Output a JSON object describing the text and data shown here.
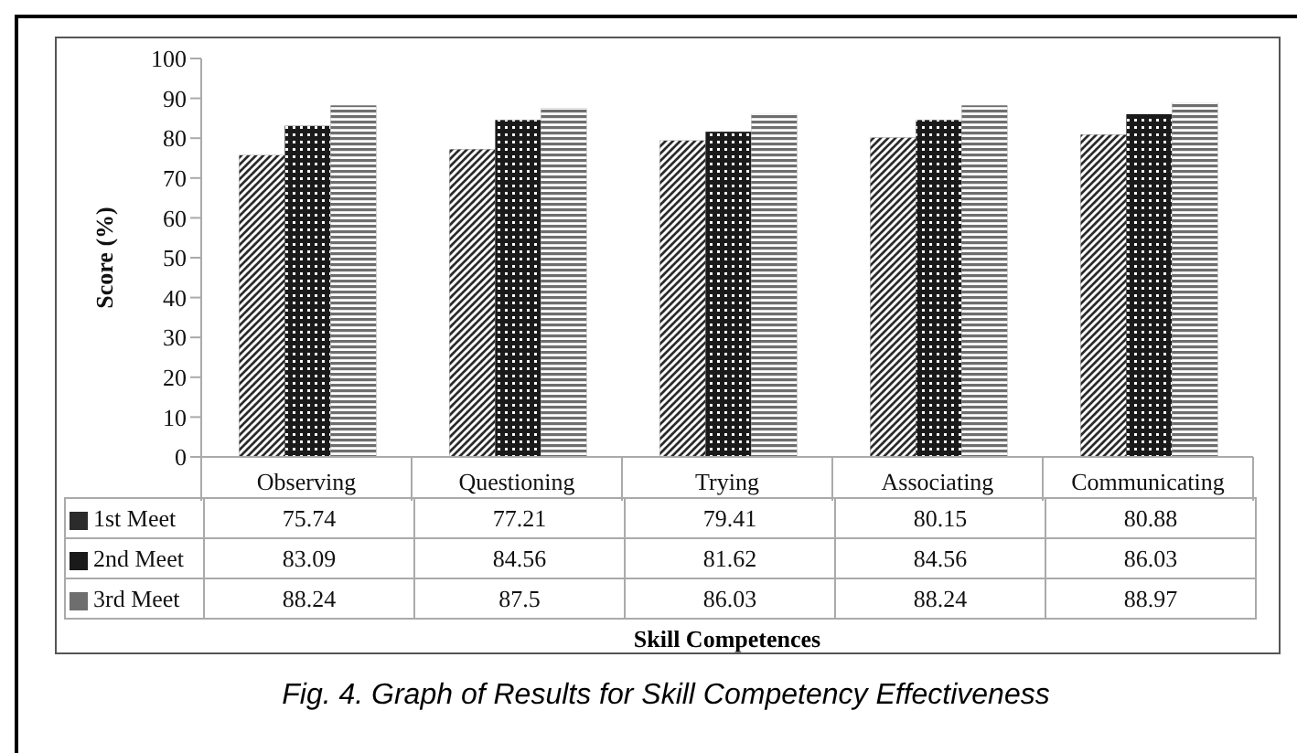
{
  "chart_data": {
    "type": "bar",
    "ylabel": "Score (%)",
    "categories": [
      "Observing",
      "Questioning",
      "Trying",
      "Associating",
      "Communicating"
    ],
    "series": [
      {
        "name": "1st Meet",
        "color": "#2b2b2b",
        "values": [
          75.74,
          77.21,
          79.41,
          80.15,
          80.88
        ]
      },
      {
        "name": "2nd Meet",
        "color": "#1a1a1a",
        "values": [
          83.09,
          84.56,
          81.62,
          84.56,
          86.03
        ]
      },
      {
        "name": "3rd Meet",
        "color": "#6e6e6e",
        "values": [
          88.24,
          87.5,
          86.03,
          88.24,
          88.97
        ]
      }
    ],
    "ylim": [
      0,
      100
    ],
    "yticks": [
      0,
      10,
      20,
      30,
      40,
      50,
      60,
      70,
      80,
      90,
      100
    ],
    "grid": false,
    "legend": "bottom",
    "data_labels": true,
    "annotations": [
      "Skill Competences",
      "Fig. 4. Graph of Results for Skill Competency Effectiveness"
    ]
  }
}
